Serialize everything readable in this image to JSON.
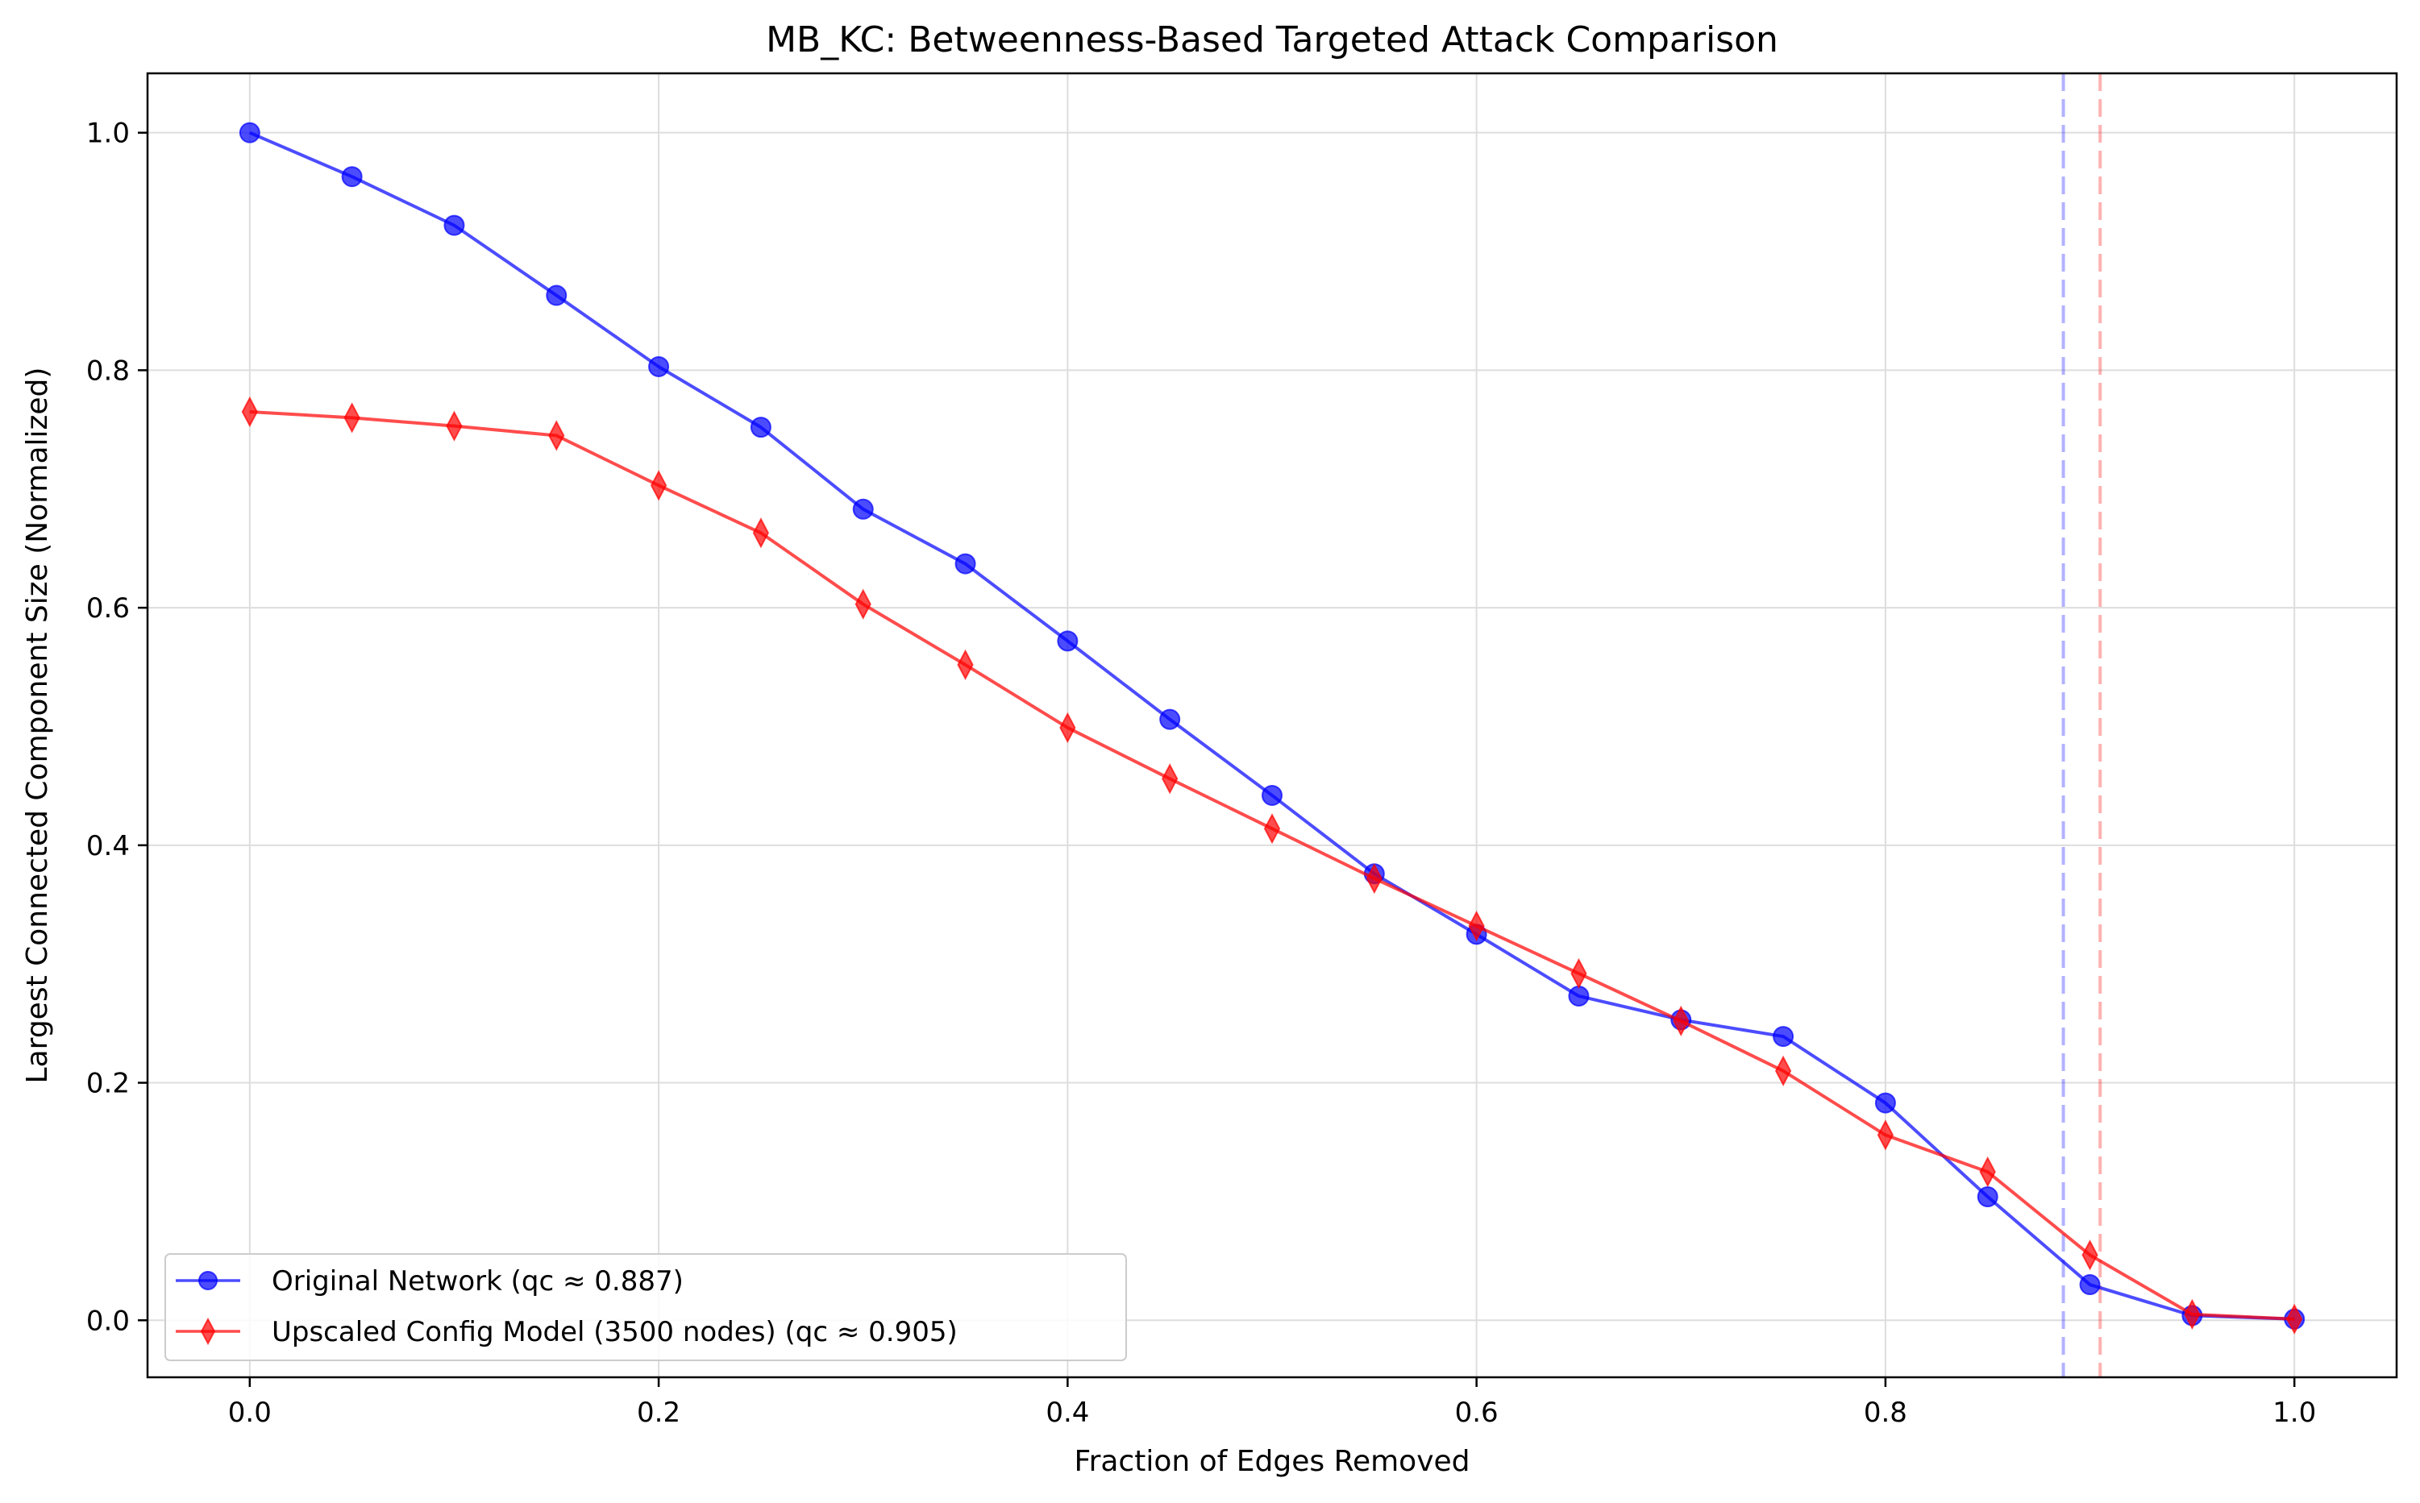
{
  "chart_data": {
    "type": "line",
    "title": "MB_KC: Betweenness-Based Targeted Attack Comparison",
    "xlabel": "Fraction of Edges Removed",
    "ylabel": "Largest Connected Component Size (Normalized)",
    "xlim": [
      -0.05,
      1.05
    ],
    "ylim": [
      -0.048,
      1.05
    ],
    "xticks": [
      "0.0",
      "0.2",
      "0.4",
      "0.6",
      "0.8",
      "1.0"
    ],
    "yticks": [
      "0.0",
      "0.2",
      "0.4",
      "0.6",
      "0.8",
      "1.0"
    ],
    "grid": true,
    "legend_position": "bottom-left",
    "x": [
      0.0,
      0.05,
      0.1,
      0.15,
      0.2,
      0.25,
      0.3,
      0.35,
      0.4,
      0.45,
      0.5,
      0.55,
      0.6,
      0.65,
      0.7,
      0.75,
      0.8,
      0.85,
      0.9,
      0.95,
      1.0
    ],
    "series": [
      {
        "name": "Original Network (qc ≈ 0.887)",
        "color": "#0000ff",
        "marker": "circle",
        "values": [
          1.0,
          0.963,
          0.922,
          0.863,
          0.803,
          0.752,
          0.683,
          0.637,
          0.572,
          0.506,
          0.442,
          0.376,
          0.325,
          0.273,
          0.253,
          0.239,
          0.183,
          0.104,
          0.03,
          0.004,
          0.001
        ]
      },
      {
        "name": "Upscaled Config Model (3500 nodes) (qc ≈ 0.905)",
        "color": "#ff0000",
        "marker": "thin-diamond",
        "values": [
          0.765,
          0.76,
          0.753,
          0.745,
          0.703,
          0.663,
          0.603,
          0.552,
          0.499,
          0.456,
          0.414,
          0.372,
          0.332,
          0.292,
          0.252,
          0.21,
          0.156,
          0.125,
          0.055,
          0.005,
          0.001
        ]
      }
    ],
    "vlines": [
      {
        "x": 0.887,
        "color": "#0000ff",
        "style": "dashed"
      },
      {
        "x": 0.905,
        "color": "#ff0000",
        "style": "dashed"
      }
    ]
  }
}
